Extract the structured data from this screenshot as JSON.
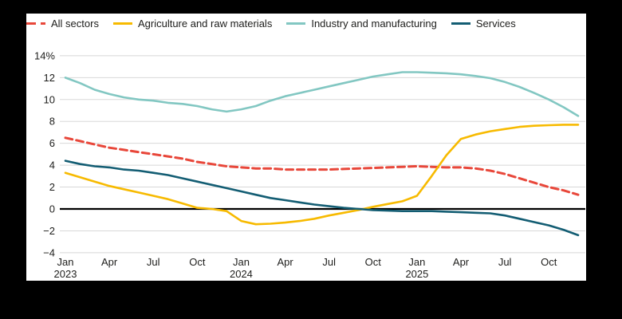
{
  "frame": {
    "background": "#000000"
  },
  "panel": {
    "background": "#ffffff"
  },
  "style": {
    "grid_color": "#d8d8d8",
    "zero_line_color": "#000000",
    "text_color": "#1d1d1b"
  },
  "chart_data": {
    "type": "line",
    "title": "",
    "xlabel": "",
    "ylabel": "%",
    "grid": "horizontal",
    "legend_position": "top",
    "ylim": [
      -4,
      14
    ],
    "yticks": [
      {
        "v": 14,
        "label": "14%"
      },
      {
        "v": 12,
        "label": "12"
      },
      {
        "v": 10,
        "label": "10"
      },
      {
        "v": 8,
        "label": "8"
      },
      {
        "v": 6,
        "label": "6"
      },
      {
        "v": 4,
        "label": "4"
      },
      {
        "v": 2,
        "label": "2"
      },
      {
        "v": 0,
        "label": "0"
      },
      {
        "v": -2,
        "label": "−2"
      },
      {
        "v": -4,
        "label": "−4"
      }
    ],
    "x_unit": "month",
    "x_start": "Jan 2023",
    "x_end": "Dec 2025",
    "n_points": 36,
    "xticks": [
      {
        "m": 0,
        "label": "Jan",
        "year": "2023"
      },
      {
        "m": 3,
        "label": "Apr"
      },
      {
        "m": 6,
        "label": "Jul"
      },
      {
        "m": 9,
        "label": "Oct"
      },
      {
        "m": 12,
        "label": "Jan",
        "year": "2024"
      },
      {
        "m": 15,
        "label": "Apr"
      },
      {
        "m": 18,
        "label": "Jul"
      },
      {
        "m": 21,
        "label": "Oct"
      },
      {
        "m": 24,
        "label": "Jan",
        "year": "2025"
      },
      {
        "m": 27,
        "label": "Apr"
      },
      {
        "m": 30,
        "label": "Jul"
      },
      {
        "m": 33,
        "label": "Oct"
      }
    ],
    "series": [
      {
        "name": "All sectors",
        "color": "#e8473a",
        "dash": "dashed",
        "values": [
          6.5,
          6.2,
          5.9,
          5.6,
          5.4,
          5.2,
          5.0,
          4.8,
          4.6,
          4.3,
          4.1,
          3.9,
          3.8,
          3.7,
          3.7,
          3.6,
          3.6,
          3.6,
          3.6,
          3.65,
          3.7,
          3.75,
          3.8,
          3.85,
          3.9,
          3.85,
          3.8,
          3.8,
          3.7,
          3.5,
          3.2,
          2.8,
          2.4,
          2.0,
          1.7,
          1.3
        ]
      },
      {
        "name": "Agriculture and raw materials",
        "color": "#f7ba00",
        "dash": "solid",
        "values": [
          3.3,
          2.9,
          2.5,
          2.1,
          1.8,
          1.5,
          1.2,
          0.9,
          0.5,
          0.1,
          0.0,
          -0.2,
          -1.1,
          -1.4,
          -1.35,
          -1.25,
          -1.1,
          -0.9,
          -0.6,
          -0.35,
          -0.1,
          0.2,
          0.45,
          0.7,
          1.2,
          3.0,
          4.9,
          6.4,
          6.8,
          7.1,
          7.3,
          7.5,
          7.6,
          7.65,
          7.7,
          7.7
        ]
      },
      {
        "name": "Industry and manufacturing",
        "color": "#82c7c2",
        "dash": "solid",
        "values": [
          12.0,
          11.5,
          10.9,
          10.5,
          10.2,
          10.0,
          9.9,
          9.7,
          9.6,
          9.4,
          9.1,
          8.9,
          9.1,
          9.4,
          9.9,
          10.3,
          10.6,
          10.9,
          11.2,
          11.5,
          11.8,
          12.1,
          12.3,
          12.5,
          12.5,
          12.45,
          12.4,
          12.3,
          12.15,
          11.95,
          11.6,
          11.15,
          10.6,
          10.0,
          9.3,
          8.5
        ]
      },
      {
        "name": "Services",
        "color": "#135d73",
        "dash": "solid",
        "values": [
          4.4,
          4.1,
          3.9,
          3.8,
          3.6,
          3.5,
          3.3,
          3.1,
          2.8,
          2.5,
          2.2,
          1.9,
          1.6,
          1.3,
          1.0,
          0.8,
          0.6,
          0.4,
          0.25,
          0.1,
          0.0,
          -0.1,
          -0.15,
          -0.2,
          -0.2,
          -0.2,
          -0.25,
          -0.3,
          -0.35,
          -0.4,
          -0.6,
          -0.9,
          -1.2,
          -1.5,
          -1.9,
          -2.4
        ]
      }
    ]
  }
}
